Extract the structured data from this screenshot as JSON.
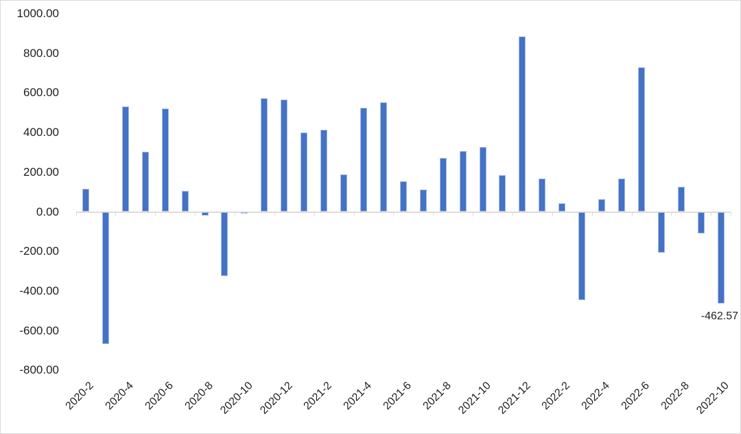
{
  "chart_data": {
    "type": "bar",
    "title": "",
    "categories": [
      "2020-2",
      "2020-3",
      "2020-4",
      "2020-5",
      "2020-6",
      "2020-7",
      "2020-8",
      "2020-9",
      "2020-10",
      "2020-11",
      "2020-12",
      "2021-1",
      "2021-2",
      "2021-3",
      "2021-4",
      "2021-5",
      "2021-6",
      "2021-7",
      "2021-8",
      "2021-9",
      "2021-10",
      "2021-11",
      "2021-12",
      "2022-1",
      "2022-2",
      "2022-3",
      "2022-4",
      "2022-5",
      "2022-6",
      "2022-7",
      "2022-8",
      "2022-9",
      "2022-10"
    ],
    "values": [
      116,
      -668,
      532,
      302,
      523,
      106,
      -20,
      -323,
      -6,
      575,
      566,
      401,
      413,
      190,
      524,
      554,
      155,
      111,
      272,
      306,
      327,
      187,
      885,
      168,
      42,
      -445,
      64,
      169,
      728,
      -207,
      128,
      -110,
      -462.57
    ],
    "xlabel": "",
    "ylabel": "",
    "y_axis": {
      "min": -800,
      "max": 1000,
      "step": 200,
      "tick_values": [
        1000,
        800,
        600,
        400,
        200,
        0,
        -200,
        -400,
        -600,
        -800
      ],
      "tick_labels": [
        "1000.00",
        "800.00",
        "600.00",
        "400.00",
        "200.00",
        "0.00",
        "-200.00",
        "-400.00",
        "-600.00",
        "-800.00"
      ]
    },
    "x_axis": {
      "tick_label_every": 2,
      "rotation_deg": 45
    },
    "grid": "off",
    "legend": "none",
    "bar_color": "#4472C4",
    "bar_edge_color": "#A6BDE8",
    "axis_color": "#D9D9D9",
    "text_color": "#1F1F1F",
    "background_color": "#FFFFFF",
    "annotations": [
      {
        "category": "2022-10",
        "text": "-462.57"
      }
    ]
  }
}
